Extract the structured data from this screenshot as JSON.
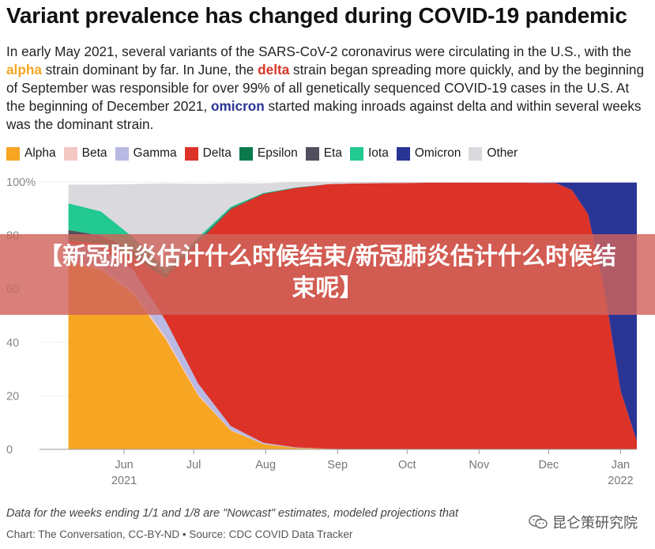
{
  "title": "Variant prevalence has changed during COVID-19 pandemic",
  "intro": {
    "p1": "In early May 2021, several variants of the SARS-CoV-2 coronavirus were circulating in the U.S., with the ",
    "alpha": "alpha",
    "p2": " strain dominant by far. In June, the ",
    "delta": "delta",
    "p3": " strain began spreading more quickly, and by the beginning of September was responsible for over 99% of all genetically sequenced COVID-19 cases in the U.S. At the beginning of December 2021, ",
    "omicron": "omicron",
    "p4": " started making inroads against delta and within several weeks was the dominant strain."
  },
  "banner": "【新冠肺炎估计什么时候结束/新冠肺炎估计什么时候结束呢】",
  "footnote": "Data for the weeks ending 1/1 and 1/8 are \"Nowcast\" estimates, modeled projections that",
  "source": "Chart: The Conversation, CC-BY-ND • Source: CDC COVID Data Tracker",
  "watermark": "昆仑策研究院",
  "icons": {
    "watermark": "wechat-icon"
  },
  "colors": {
    "Alpha": "#f6a623",
    "Beta": "#f3c7c4",
    "Gamma": "#b9b9e3",
    "Delta": "#dc3228",
    "Epsilon": "#0a7a4c",
    "Eta": "#4f4f5e",
    "Iota": "#22c991",
    "Omicron": "#2a3495",
    "Other": "#d9d9de"
  },
  "chart_data": {
    "type": "area",
    "stacked": true,
    "title": "",
    "xlabel": "",
    "ylabel": "",
    "ylim": [
      0,
      100
    ],
    "y_ticks": [
      "0",
      "20",
      "40",
      "60",
      "80",
      "100%"
    ],
    "x_ticks": [
      {
        "label": "Jun",
        "sub": "2021",
        "x": "2021-06-01"
      },
      {
        "label": "Jul",
        "sub": "",
        "x": "2021-07-01"
      },
      {
        "label": "Aug",
        "sub": "",
        "x": "2021-08-01"
      },
      {
        "label": "Sep",
        "sub": "",
        "x": "2021-09-01"
      },
      {
        "label": "Oct",
        "sub": "",
        "x": "2021-10-01"
      },
      {
        "label": "Nov",
        "sub": "",
        "x": "2021-11-01"
      },
      {
        "label": "Dec",
        "sub": "",
        "x": "2021-12-01"
      },
      {
        "label": "Jan",
        "sub": "2022",
        "x": "2022-01-01"
      }
    ],
    "x": [
      "2021-05-08",
      "2021-05-22",
      "2021-06-05",
      "2021-06-19",
      "2021-07-03",
      "2021-07-17",
      "2021-07-31",
      "2021-08-14",
      "2021-08-28",
      "2021-09-11",
      "2021-09-25",
      "2021-10-09",
      "2021-10-23",
      "2021-11-06",
      "2021-11-20",
      "2021-12-04",
      "2021-12-11",
      "2021-12-18",
      "2021-12-25",
      "2022-01-01",
      "2022-01-08"
    ],
    "legend_position": "top-left",
    "grid": true,
    "series": [
      {
        "name": "Alpha",
        "values": [
          70,
          67,
          58,
          41,
          20,
          7,
          2,
          0.5,
          0.2,
          0,
          0,
          0,
          0,
          0,
          0,
          0,
          0,
          0,
          0,
          0,
          0
        ]
      },
      {
        "name": "Beta",
        "values": [
          1,
          1,
          1,
          1,
          0.5,
          0.2,
          0,
          0,
          0,
          0,
          0,
          0,
          0,
          0,
          0,
          0,
          0,
          0,
          0,
          0,
          0
        ]
      },
      {
        "name": "Gamma",
        "values": [
          6,
          7,
          8,
          6,
          4,
          1.5,
          0.5,
          0.2,
          0,
          0,
          0,
          0,
          0,
          0,
          0,
          0,
          0,
          0,
          0,
          0,
          0
        ]
      },
      {
        "name": "Delta",
        "values": [
          1,
          2,
          5,
          16,
          53,
          81,
          93,
          97,
          99,
          99.5,
          99.6,
          99.7,
          99.7,
          99.7,
          99.7,
          99.6,
          97,
          88,
          60,
          22,
          3
        ]
      },
      {
        "name": "Epsilon",
        "values": [
          2,
          2,
          1.5,
          1,
          0.5,
          0.3,
          0.2,
          0.2,
          0,
          0,
          0,
          0,
          0,
          0,
          0,
          0,
          0,
          0,
          0,
          0,
          0
        ]
      },
      {
        "name": "Eta",
        "values": [
          2,
          1,
          0.7,
          0.5,
          0.3,
          0.2,
          0,
          0,
          0,
          0,
          0,
          0,
          0,
          0,
          0,
          0,
          0,
          0,
          0,
          0,
          0
        ]
      },
      {
        "name": "Iota",
        "values": [
          10,
          9,
          5,
          2,
          1,
          0.5,
          0.2,
          0,
          0,
          0,
          0,
          0,
          0,
          0,
          0,
          0,
          0,
          0,
          0,
          0,
          0
        ]
      },
      {
        "name": "Omicron",
        "values": [
          0,
          0,
          0,
          0,
          0,
          0,
          0,
          0,
          0,
          0,
          0,
          0,
          0,
          0,
          0,
          0.2,
          2.8,
          11.8,
          39.8,
          77.8,
          96.8
        ]
      },
      {
        "name": "Other",
        "values": [
          7,
          10,
          20,
          32,
          20,
          8.8,
          3.6,
          2.1,
          0.8,
          0.5,
          0.4,
          0.3,
          0.3,
          0.3,
          0.3,
          0.2,
          0.2,
          0.2,
          0.2,
          0.2,
          0.2
        ]
      }
    ]
  }
}
